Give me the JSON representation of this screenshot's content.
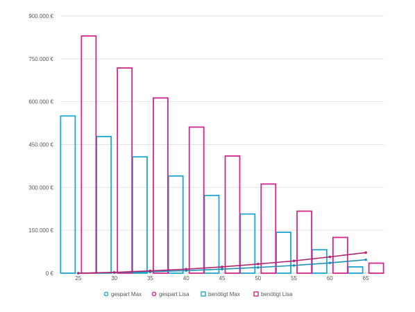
{
  "chart_data": {
    "type": "bar",
    "categories": [
      "25",
      "30",
      "35",
      "40",
      "45",
      "50",
      "55",
      "60",
      "65"
    ],
    "yticks": [
      "0 €",
      "150.000 €",
      "300.000 €",
      "450.000 €",
      "600.000 €",
      "750.000 €",
      "900.000 €"
    ],
    "ylim": [
      0,
      900000
    ],
    "grid": true,
    "legend_position": "bottom",
    "bar_series": [
      {
        "name": "benötigt Max",
        "color": "#1aa7d1",
        "values": [
          550000,
          478000,
          407000,
          340000,
          272000,
          207000,
          143000,
          82000,
          22000
        ]
      },
      {
        "name": "benötigt Lisa",
        "color": "#d6258c",
        "values": [
          830000,
          718000,
          613000,
          511000,
          410000,
          312000,
          217000,
          125000,
          35000
        ]
      }
    ],
    "line_series": [
      {
        "name": "gespart Max",
        "color": "#1a8fb5",
        "values": [
          0,
          2000,
          5000,
          9000,
          14000,
          20000,
          27000,
          36000,
          47000
        ]
      },
      {
        "name": "gespart Lisa",
        "color": "#b5236f",
        "values": [
          0,
          3000,
          8000,
          14000,
          22000,
          32000,
          43000,
          57000,
          72000
        ]
      }
    ],
    "legend": [
      "gespart Max",
      "gespart Lisa",
      "benötigt Max",
      "benötigt Lisa"
    ],
    "legend_colors": [
      "#1aa7d1",
      "#d6258c",
      "#1aa7d1",
      "#d6258c"
    ],
    "legend_markers": [
      "circle",
      "circle",
      "square",
      "square"
    ]
  }
}
